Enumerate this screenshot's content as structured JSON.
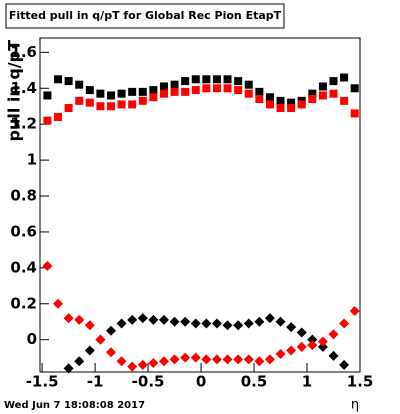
{
  "chart_data": {
    "type": "scatter",
    "title": "Fitted pull in q/pT for Global Rec Pion EtapT",
    "y_label": "pull in q/pT",
    "x_label": "η",
    "timestamp": "Wed Jun  7 18:08:08 2017",
    "x": [
      -1.45,
      -1.35,
      -1.25,
      -1.15,
      -1.05,
      -0.95,
      -0.85,
      -0.75,
      -0.65,
      -0.55,
      -0.45,
      -0.35,
      -0.25,
      -0.15,
      -0.05,
      0.05,
      0.15,
      0.25,
      0.35,
      0.45,
      0.55,
      0.65,
      0.75,
      0.85,
      0.95,
      1.05,
      1.15,
      1.25,
      1.35,
      1.45
    ],
    "series": [
      {
        "color": "#000000",
        "marker": "square",
        "values": [
          1.36,
          1.45,
          1.44,
          1.42,
          1.39,
          1.37,
          1.36,
          1.37,
          1.38,
          1.38,
          1.39,
          1.41,
          1.42,
          1.44,
          1.45,
          1.45,
          1.45,
          1.45,
          1.44,
          1.42,
          1.38,
          1.35,
          1.33,
          1.32,
          1.33,
          1.37,
          1.41,
          1.44,
          1.46,
          1.4
        ]
      },
      {
        "color": "#ff0000",
        "marker": "square",
        "values": [
          1.22,
          1.24,
          1.29,
          1.33,
          1.32,
          1.3,
          1.3,
          1.31,
          1.31,
          1.33,
          1.35,
          1.37,
          1.38,
          1.38,
          1.39,
          1.4,
          1.4,
          1.4,
          1.39,
          1.37,
          1.34,
          1.31,
          1.29,
          1.29,
          1.31,
          1.34,
          1.36,
          1.37,
          1.33,
          1.26
        ]
      },
      {
        "color": "#000000",
        "marker": "diamond",
        "values": [
          null,
          null,
          -0.16,
          -0.12,
          -0.06,
          0.0,
          0.05,
          0.09,
          0.11,
          0.12,
          0.11,
          0.11,
          0.1,
          0.1,
          0.09,
          0.09,
          0.09,
          0.08,
          0.08,
          0.09,
          0.1,
          0.12,
          0.1,
          0.07,
          0.04,
          0.0,
          -0.04,
          -0.09,
          -0.14,
          null
        ]
      },
      {
        "color": "#ff0000",
        "marker": "diamond",
        "values": [
          0.41,
          0.2,
          0.12,
          0.11,
          0.08,
          0.0,
          -0.07,
          -0.12,
          -0.15,
          -0.14,
          -0.13,
          -0.12,
          -0.11,
          -0.1,
          -0.1,
          -0.11,
          -0.11,
          -0.11,
          -0.11,
          -0.11,
          -0.12,
          -0.11,
          -0.08,
          -0.06,
          -0.04,
          -0.03,
          -0.01,
          0.03,
          0.09,
          0.16
        ]
      }
    ],
    "xlim": [
      -1.52,
      1.5
    ],
    "ylim": [
      -0.18,
      1.68
    ],
    "xticks": [
      -1.5,
      -1,
      -0.5,
      0,
      0.5,
      1,
      1.5
    ],
    "yticks": [
      0,
      0.2,
      0.4,
      0.6,
      0.8,
      1,
      1.2,
      1.4,
      1.6
    ],
    "grid": false
  }
}
